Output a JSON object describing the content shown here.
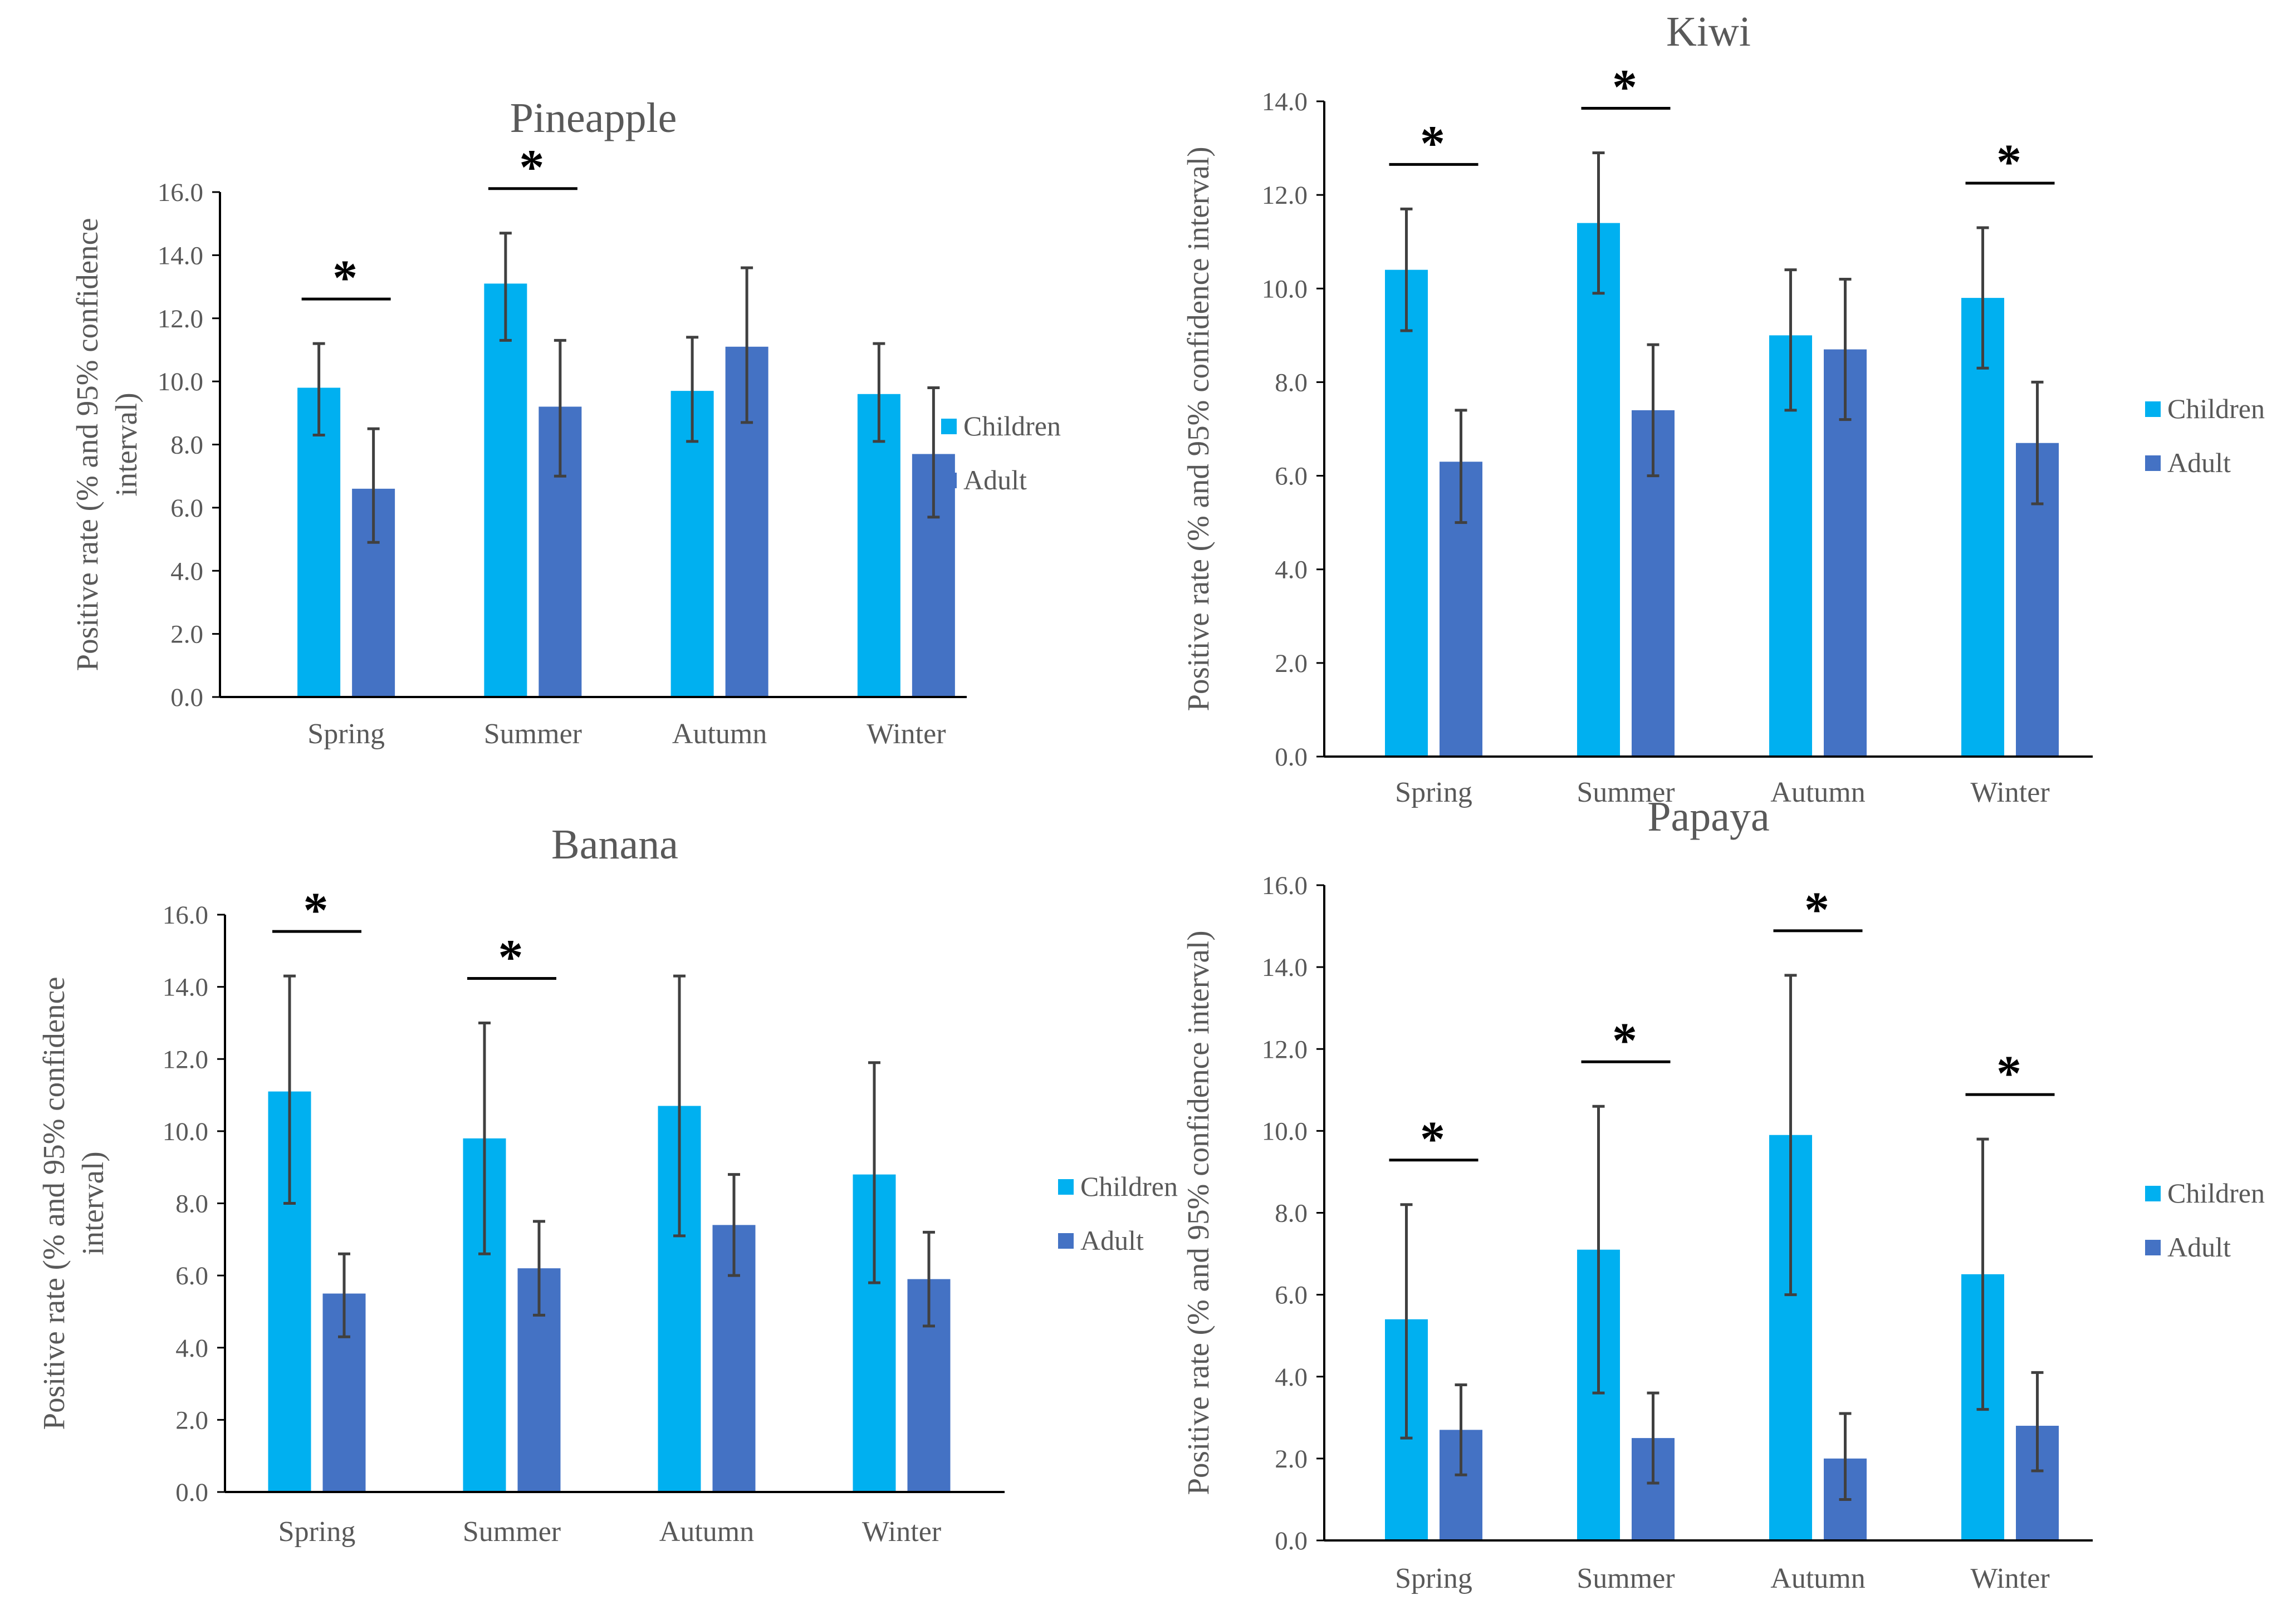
{
  "colors": {
    "children": "#00B0F0",
    "adult": "#4472C4",
    "axis": "#000000",
    "errorbar": "#404040",
    "significance": "#000000"
  },
  "chart_data": [
    {
      "id": "pineapple",
      "type": "bar",
      "title": "Pineapple",
      "ylabel_line1": "Positive rate (% and 95% confidence",
      "ylabel_line2": "interval)",
      "ylim": [
        0,
        16
      ],
      "yticks": [
        "0.0",
        "2.0",
        "4.0",
        "6.0",
        "8.0",
        "10.0",
        "12.0",
        "14.0",
        "16.0"
      ],
      "categories": [
        "Spring",
        "Summer",
        "Autumn",
        "Winter"
      ],
      "series": [
        {
          "name": "Children",
          "values": [
            9.8,
            13.1,
            9.7,
            9.6
          ],
          "ci_low": [
            8.3,
            11.3,
            8.1,
            8.1
          ],
          "ci_high": [
            11.2,
            14.7,
            11.4,
            11.2
          ]
        },
        {
          "name": "Adult",
          "values": [
            6.6,
            9.2,
            11.1,
            7.7
          ],
          "ci_low": [
            4.9,
            7.0,
            8.7,
            5.7
          ],
          "ci_high": [
            8.5,
            11.3,
            13.6,
            9.8
          ]
        }
      ],
      "significance": [
        {
          "category": "Spring",
          "label": "*"
        },
        {
          "category": "Summer",
          "label": "*"
        }
      ]
    },
    {
      "id": "kiwi",
      "type": "bar",
      "title": "Kiwi",
      "ylabel_line1": "Positive rate (% and 95% confidence interval)",
      "ylabel_line2": "",
      "ylim": [
        0,
        14
      ],
      "yticks": [
        "0.0",
        "2.0",
        "4.0",
        "6.0",
        "8.0",
        "10.0",
        "12.0",
        "14.0"
      ],
      "categories": [
        "Spring",
        "Summer",
        "Autumn",
        "Winter"
      ],
      "series": [
        {
          "name": "Children",
          "values": [
            10.4,
            11.4,
            9.0,
            9.8
          ],
          "ci_low": [
            9.1,
            9.9,
            7.4,
            8.3
          ],
          "ci_high": [
            11.7,
            12.9,
            10.4,
            11.3
          ]
        },
        {
          "name": "Adult",
          "values": [
            6.3,
            7.4,
            8.7,
            6.7
          ],
          "ci_low": [
            5.0,
            6.0,
            7.2,
            5.4
          ],
          "ci_high": [
            7.4,
            8.8,
            10.2,
            8.0
          ]
        }
      ],
      "significance": [
        {
          "category": "Spring",
          "label": "*"
        },
        {
          "category": "Summer",
          "label": "*"
        },
        {
          "category": "Winter",
          "label": "*"
        }
      ]
    },
    {
      "id": "banana",
      "type": "bar",
      "title": "Banana",
      "ylabel_line1": "Positive rate (% and 95% confidence",
      "ylabel_line2": "interval)",
      "ylim": [
        0,
        16
      ],
      "yticks": [
        "0.0",
        "2.0",
        "4.0",
        "6.0",
        "8.0",
        "10.0",
        "12.0",
        "14.0",
        "16.0"
      ],
      "categories": [
        "Spring",
        "Summer",
        "Autumn",
        "Winter"
      ],
      "series": [
        {
          "name": "Children",
          "values": [
            11.1,
            9.8,
            10.7,
            8.8
          ],
          "ci_low": [
            8.0,
            6.6,
            7.1,
            5.8
          ],
          "ci_high": [
            14.3,
            13.0,
            14.3,
            11.9
          ]
        },
        {
          "name": "Adult",
          "values": [
            5.5,
            6.2,
            7.4,
            5.9
          ],
          "ci_low": [
            4.3,
            4.9,
            6.0,
            4.6
          ],
          "ci_high": [
            6.6,
            7.5,
            8.8,
            7.2
          ]
        }
      ],
      "significance": [
        {
          "category": "Spring",
          "label": "*"
        },
        {
          "category": "Summer",
          "label": "*"
        }
      ]
    },
    {
      "id": "papaya",
      "type": "bar",
      "title": "Papaya",
      "ylabel_line1": "Positive rate (% and 95% confidence interval)",
      "ylabel_line2": "",
      "ylim": [
        0,
        16
      ],
      "yticks": [
        "0.0",
        "2.0",
        "4.0",
        "6.0",
        "8.0",
        "10.0",
        "12.0",
        "14.0",
        "16.0"
      ],
      "categories": [
        "Spring",
        "Summer",
        "Autumn",
        "Winter"
      ],
      "series": [
        {
          "name": "Children",
          "values": [
            5.4,
            7.1,
            9.9,
            6.5
          ],
          "ci_low": [
            2.5,
            3.6,
            6.0,
            3.2
          ],
          "ci_high": [
            8.2,
            10.6,
            13.8,
            9.8
          ]
        },
        {
          "name": "Adult",
          "values": [
            2.7,
            2.5,
            2.0,
            2.8
          ],
          "ci_low": [
            1.6,
            1.4,
            1.0,
            1.7
          ],
          "ci_high": [
            3.8,
            3.6,
            3.1,
            4.1
          ]
        }
      ],
      "significance": [
        {
          "category": "Spring",
          "label": "*"
        },
        {
          "category": "Summer",
          "label": "*"
        },
        {
          "category": "Autumn",
          "label": "*"
        },
        {
          "category": "Winter",
          "label": "*"
        }
      ]
    }
  ]
}
